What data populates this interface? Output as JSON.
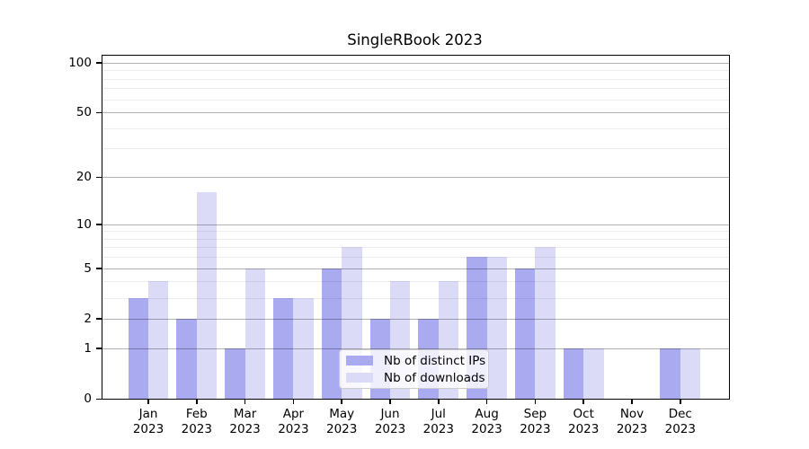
{
  "title": "SingleRBook 2023",
  "chart_data": {
    "type": "bar",
    "title": "SingleRBook 2023",
    "xlabel": "",
    "ylabel": "",
    "categories": [
      {
        "month": "Jan",
        "year": "2023"
      },
      {
        "month": "Feb",
        "year": "2023"
      },
      {
        "month": "Mar",
        "year": "2023"
      },
      {
        "month": "Apr",
        "year": "2023"
      },
      {
        "month": "May",
        "year": "2023"
      },
      {
        "month": "Jun",
        "year": "2023"
      },
      {
        "month": "Jul",
        "year": "2023"
      },
      {
        "month": "Aug",
        "year": "2023"
      },
      {
        "month": "Sep",
        "year": "2023"
      },
      {
        "month": "Oct",
        "year": "2023"
      },
      {
        "month": "Nov",
        "year": "2023"
      },
      {
        "month": "Dec",
        "year": "2023"
      }
    ],
    "series": [
      {
        "name": "Nb of distinct IPs",
        "color": "#aaaaf0",
        "values": [
          3,
          2,
          1,
          3,
          5,
          2,
          2,
          6,
          5,
          1,
          0,
          1
        ]
      },
      {
        "name": "Nb of downloads",
        "color": "#dbdbf8",
        "values": [
          4,
          16,
          5,
          3,
          7,
          4,
          4,
          6,
          7,
          1,
          0,
          1
        ]
      }
    ],
    "y_scale": "log1p",
    "y_ticks": [
      0,
      1,
      2,
      5,
      10,
      20,
      50,
      100
    ],
    "y_minor_gridlines": [
      3,
      4,
      6,
      7,
      8,
      9,
      30,
      40,
      60,
      70,
      80,
      90
    ],
    "ylim": [
      0,
      110
    ],
    "grid": true,
    "legend_position": "lower center"
  },
  "legend": {
    "items": [
      {
        "label": "Nb of distinct IPs"
      },
      {
        "label": "Nb of downloads"
      }
    ]
  }
}
